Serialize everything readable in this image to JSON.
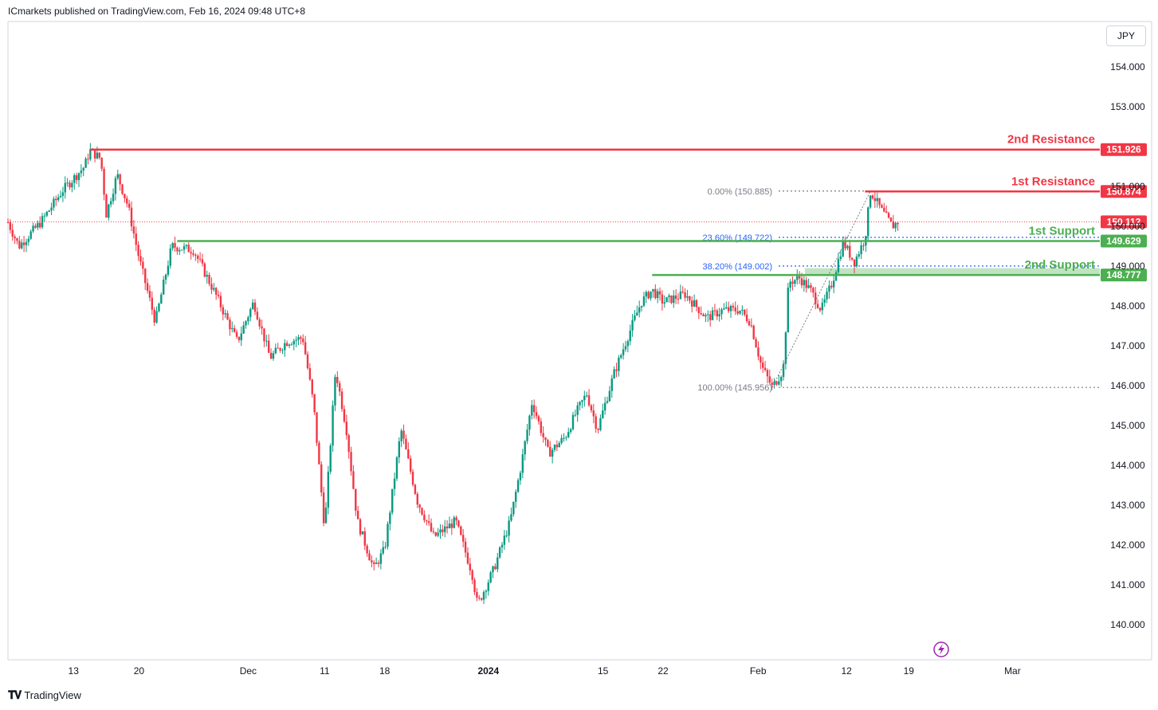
{
  "header": {
    "text": "ICmarkets published on TradingView.com, Feb 16, 2024 09:48 UTC+8"
  },
  "currency_label": "JPY",
  "footer": {
    "brand": "TradingView"
  },
  "colors": {
    "up": "#089981",
    "down": "#f23645",
    "resistance": "#f23645",
    "support": "#4caf50",
    "fib": "#2962ff",
    "grid": "#f0f3fa"
  },
  "chart_data": {
    "type": "candlestick",
    "title": "",
    "ylim": [
      139.8,
      155.0
    ],
    "y_ticks": [
      140.0,
      141.0,
      142.0,
      143.0,
      144.0,
      145.0,
      146.0,
      147.0,
      148.0,
      149.0,
      150.0,
      151.0,
      153.0,
      154.0
    ],
    "y_tick_labels": [
      "140.000",
      "141.000",
      "142.000",
      "143.000",
      "144.000",
      "145.000",
      "146.000",
      "147.000",
      "148.000",
      "149.000",
      "150.000",
      "151.000",
      "153.000",
      "154.000"
    ],
    "x_ticks": [
      {
        "label": "13",
        "x": 0.06
      },
      {
        "label": "20",
        "x": 0.12
      },
      {
        "label": "Dec",
        "x": 0.22
      },
      {
        "label": "11",
        "x": 0.29
      },
      {
        "label": "18",
        "x": 0.345
      },
      {
        "label": "2024",
        "x": 0.44,
        "bold": true
      },
      {
        "label": "15",
        "x": 0.545
      },
      {
        "label": "22",
        "x": 0.6
      },
      {
        "label": "Feb",
        "x": 0.687
      },
      {
        "label": "12",
        "x": 0.768
      },
      {
        "label": "19",
        "x": 0.825
      },
      {
        "label": "Mar",
        "x": 0.92
      }
    ],
    "price_path": [
      [
        0.0,
        150.1
      ],
      [
        0.01,
        149.5
      ],
      [
        0.03,
        150.1
      ],
      [
        0.05,
        150.9
      ],
      [
        0.07,
        151.5
      ],
      [
        0.075,
        151.9
      ],
      [
        0.085,
        151.7
      ],
      [
        0.09,
        150.3
      ],
      [
        0.1,
        151.3
      ],
      [
        0.11,
        150.5
      ],
      [
        0.12,
        149.2
      ],
      [
        0.135,
        147.6
      ],
      [
        0.15,
        149.5
      ],
      [
        0.17,
        149.4
      ],
      [
        0.19,
        148.3
      ],
      [
        0.21,
        147.1
      ],
      [
        0.225,
        148.1
      ],
      [
        0.24,
        146.7
      ],
      [
        0.255,
        147.1
      ],
      [
        0.27,
        147.2
      ],
      [
        0.28,
        145.5
      ],
      [
        0.29,
        142.4
      ],
      [
        0.3,
        146.4
      ],
      [
        0.31,
        144.9
      ],
      [
        0.32,
        142.6
      ],
      [
        0.335,
        141.4
      ],
      [
        0.345,
        141.9
      ],
      [
        0.36,
        144.9
      ],
      [
        0.375,
        143.1
      ],
      [
        0.39,
        142.2
      ],
      [
        0.41,
        142.6
      ],
      [
        0.425,
        141.3
      ],
      [
        0.43,
        140.5
      ],
      [
        0.445,
        141.4
      ],
      [
        0.46,
        142.6
      ],
      [
        0.47,
        144.0
      ],
      [
        0.48,
        145.6
      ],
      [
        0.495,
        144.3
      ],
      [
        0.51,
        144.7
      ],
      [
        0.52,
        145.3
      ],
      [
        0.53,
        145.8
      ],
      [
        0.54,
        144.9
      ],
      [
        0.555,
        146.3
      ],
      [
        0.57,
        147.4
      ],
      [
        0.58,
        148.1
      ],
      [
        0.59,
        148.4
      ],
      [
        0.6,
        148.1
      ],
      [
        0.62,
        148.3
      ],
      [
        0.64,
        147.7
      ],
      [
        0.655,
        147.9
      ],
      [
        0.67,
        147.9
      ],
      [
        0.68,
        147.6
      ],
      [
        0.69,
        146.5
      ],
      [
        0.7,
        145.956
      ],
      [
        0.71,
        146.4
      ],
      [
        0.715,
        148.6
      ],
      [
        0.725,
        148.7
      ],
      [
        0.735,
        148.4
      ],
      [
        0.745,
        147.9
      ],
      [
        0.755,
        148.6
      ],
      [
        0.765,
        149.6
      ],
      [
        0.775,
        149.1
      ],
      [
        0.785,
        149.7
      ],
      [
        0.79,
        150.885
      ],
      [
        0.8,
        150.4
      ],
      [
        0.81,
        150.0
      ],
      [
        0.815,
        150.112
      ]
    ],
    "levels": [
      {
        "name": "2nd Resistance",
        "value": 151.926,
        "label": "151.926",
        "kind": "resistance",
        "x0": 0.075
      },
      {
        "name": "1st Resistance",
        "value": 150.874,
        "label": "150.874",
        "kind": "resistance",
        "x0": 0.785
      },
      {
        "name": "1st Support",
        "value": 149.629,
        "label": "149.629",
        "kind": "support",
        "x0": 0.155
      },
      {
        "name": "2nd Support",
        "value": 148.777,
        "label": "148.777",
        "kind": "support",
        "x0": 0.59
      }
    ],
    "current_price": {
      "value": 150.112,
      "label": "150.112"
    },
    "fibonacci": [
      {
        "label": "0.00% (150.885)",
        "value": 150.885,
        "color": "#787b86"
      },
      {
        "label": "23.60% (149.722)",
        "value": 149.722,
        "color": "#2962ff"
      },
      {
        "label": "38.20% (149.002)",
        "value": 149.002,
        "color": "#2962ff"
      },
      {
        "label": "100.00% (145.956)",
        "value": 145.956,
        "color": "#787b86"
      }
    ]
  }
}
